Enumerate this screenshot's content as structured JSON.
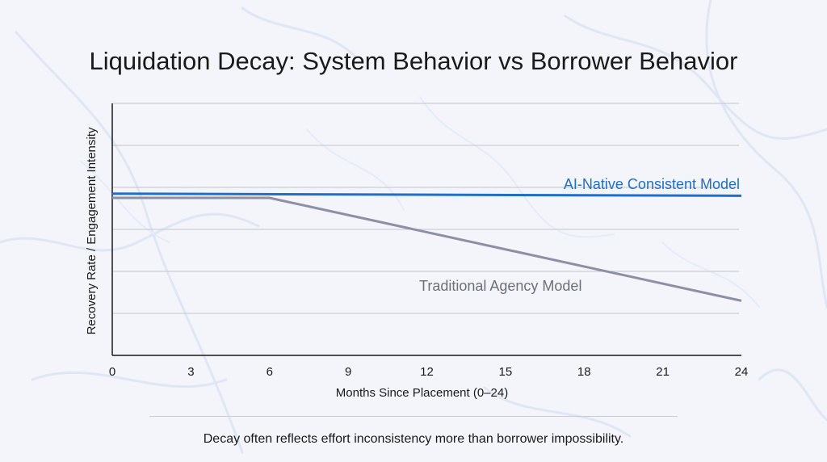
{
  "chart_data": {
    "type": "line",
    "title": "Liquidation Decay: System Behavior vs Borrower Behavior",
    "xlabel": "Months Since Placement (0–24)",
    "ylabel": "Recovery Rate / Engagement Intensity",
    "x_ticks": [
      0,
      3,
      6,
      9,
      12,
      15,
      18,
      21,
      24
    ],
    "xlim": [
      0,
      24
    ],
    "ylim": [
      0,
      6
    ],
    "grid": true,
    "series": [
      {
        "name": "AI-Native Consistent Model",
        "color": "#1f6fc8",
        "x": [
          0,
          24
        ],
        "y": [
          3.85,
          3.8
        ]
      },
      {
        "name": "Traditional Agency Model",
        "color": "#8e8fa6",
        "x": [
          0,
          6,
          24
        ],
        "y": [
          3.75,
          3.75,
          1.3
        ]
      }
    ]
  },
  "caption": "Decay often reflects effort inconsistency more than borrower impossibility."
}
